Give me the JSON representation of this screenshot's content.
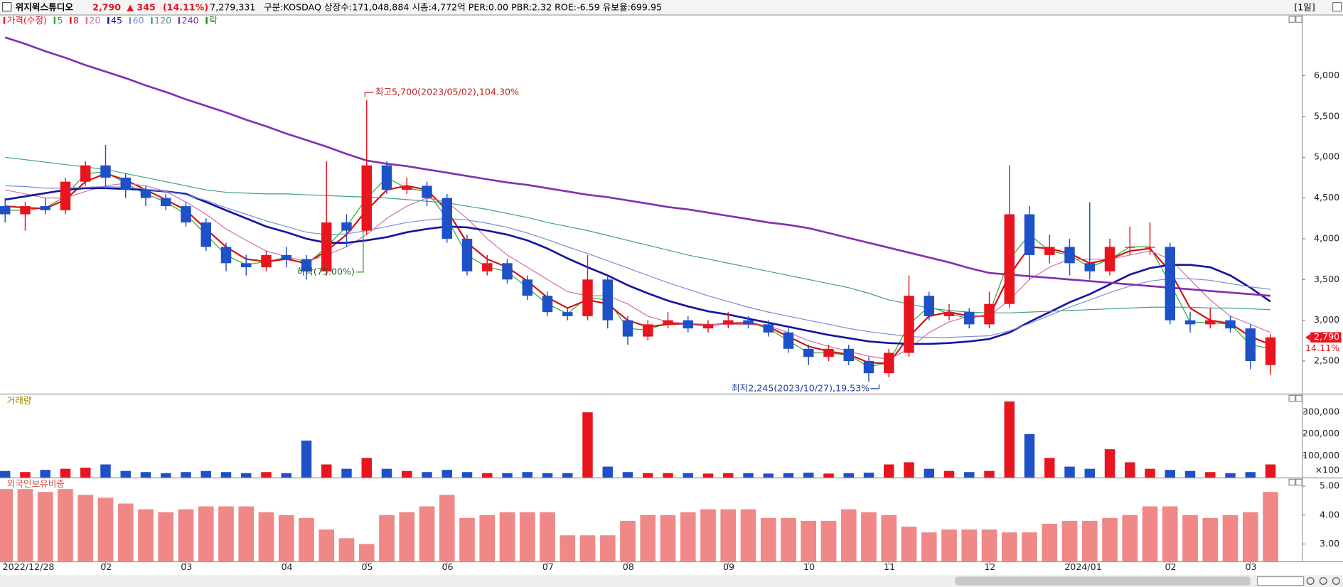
{
  "header": {
    "name": "위지윅스튜디오",
    "price": "2,790",
    "change": "▲ 345",
    "rate_text": "(14.11%)",
    "volume": "7,279,331",
    "info": "구분:KOSDAQ 상장수:171,048,884 시총:4,772억 PER:0.00 PBR:2.32 ROE:-6.59 유보율:699.95",
    "period": "[1일]",
    "axis_rate": "14.11%"
  },
  "chart_data": [
    {
      "type": "candlestick",
      "name": "가격(수정)",
      "legend_extra": "락",
      "up_color": "#e8141e",
      "down_color": "#1e50c8",
      "categories": [
        "2022/12/28",
        null,
        null,
        null,
        null,
        "02",
        null,
        null,
        null,
        "03",
        null,
        null,
        null,
        null,
        "04",
        null,
        null,
        null,
        "05",
        null,
        null,
        null,
        "06",
        null,
        null,
        null,
        null,
        "07",
        null,
        null,
        null,
        "08",
        null,
        null,
        null,
        null,
        "09",
        null,
        null,
        null,
        "10",
        null,
        null,
        null,
        "11",
        null,
        null,
        null,
        null,
        "12",
        null,
        null,
        null,
        "2024/01",
        null,
        null,
        null,
        null,
        "02",
        null,
        null,
        null,
        "03",
        null
      ],
      "open": [
        4400,
        4300,
        4400,
        4350,
        4700,
        4900,
        4750,
        4600,
        4500,
        4400,
        4200,
        3900,
        3700,
        3650,
        3800,
        3750,
        3600,
        4200,
        4100,
        4900,
        4600,
        4650,
        4500,
        4000,
        3600,
        3700,
        3500,
        3300,
        3100,
        3050,
        3500,
        3000,
        2800,
        2950,
        3000,
        2900,
        2950,
        3000,
        2950,
        2850,
        2650,
        2550,
        2650,
        2500,
        2350,
        2600,
        3300,
        3050,
        3100,
        2950,
        3200,
        4300,
        3800,
        3900,
        3700,
        3600,
        3900,
        3900,
        3900,
        3000,
        2950,
        3000,
        2900,
        2450
      ],
      "high": [
        4500,
        4450,
        4500,
        4750,
        4950,
        5150,
        4800,
        4650,
        4550,
        4450,
        4250,
        3950,
        3800,
        3850,
        3900,
        3800,
        4950,
        4300,
        5700,
        4950,
        4750,
        4700,
        4550,
        4050,
        3800,
        3750,
        3550,
        3350,
        3150,
        3800,
        3550,
        3050,
        3000,
        3100,
        3050,
        3000,
        3100,
        3050,
        3000,
        2900,
        2700,
        2700,
        2700,
        2550,
        2650,
        3550,
        3350,
        3200,
        3150,
        3350,
        4900,
        4400,
        4050,
        4000,
        4450,
        4000,
        4150,
        4200,
        3950,
        3100,
        3150,
        3050,
        2950,
        2830
      ],
      "low": [
        4200,
        4100,
        4300,
        4300,
        4650,
        4650,
        4500,
        4400,
        4350,
        4150,
        3850,
        3600,
        3550,
        3600,
        3650,
        3500,
        3550,
        3900,
        4050,
        4550,
        4550,
        4400,
        3950,
        3550,
        3550,
        3450,
        3250,
        3050,
        3000,
        3000,
        2900,
        2700,
        2750,
        2900,
        2850,
        2850,
        2900,
        2900,
        2800,
        2600,
        2450,
        2500,
        2450,
        2245,
        2300,
        2550,
        3000,
        3000,
        2900,
        2900,
        3150,
        3500,
        3700,
        3550,
        3500,
        3550,
        3800,
        3800,
        2950,
        2850,
        2900,
        2850,
        2400,
        2330
      ],
      "close": [
        4300,
        4400,
        4350,
        4700,
        4900,
        4750,
        4600,
        4500,
        4400,
        4200,
        3900,
        3700,
        3650,
        3800,
        3750,
        3600,
        4200,
        4100,
        4900,
        4600,
        4650,
        4500,
        4000,
        3600,
        3700,
        3500,
        3300,
        3100,
        3050,
        3500,
        3000,
        2800,
        2950,
        3000,
        2900,
        2950,
        3000,
        2950,
        2850,
        2650,
        2550,
        2650,
        2500,
        2350,
        2600,
        3300,
        3050,
        3100,
        2950,
        3200,
        4300,
        3800,
        3900,
        3700,
        3600,
        3900,
        3900,
        3900,
        3000,
        2950,
        3000,
        2900,
        2500,
        2790
      ],
      "series": [
        {
          "name": "5",
          "color": "#2ea82e",
          "values": [
            4350,
            4350,
            4380,
            4520,
            4800,
            4820,
            4680,
            4550,
            4450,
            4300,
            4050,
            3800,
            3680,
            3720,
            3770,
            3680,
            3900,
            4150,
            4500,
            4750,
            4620,
            4580,
            4250,
            3800,
            3650,
            3600,
            3400,
            3200,
            3080,
            3280,
            3250,
            2900,
            2880,
            2970,
            2950,
            2930,
            2970,
            2970,
            2900,
            2750,
            2600,
            2600,
            2570,
            2430,
            2480,
            2950,
            3170,
            3080,
            3020,
            3080,
            3750,
            4050,
            3850,
            3800,
            3650,
            3750,
            3900,
            3900,
            3450,
            2980,
            2970,
            2950,
            2700,
            2650
          ]
        },
        {
          "name": "8",
          "color": "#d41010",
          "values": [
            4400,
            4380,
            4370,
            4480,
            4700,
            4800,
            4720,
            4600,
            4480,
            4350,
            4120,
            3900,
            3750,
            3720,
            3750,
            3700,
            3850,
            4050,
            4350,
            4600,
            4650,
            4600,
            4350,
            3950,
            3750,
            3650,
            3480,
            3280,
            3150,
            3250,
            3200,
            3000,
            2920,
            2950,
            2960,
            2940,
            2960,
            2970,
            2920,
            2800,
            2680,
            2620,
            2580,
            2480,
            2470,
            2800,
            3050,
            3100,
            3050,
            3050,
            3550,
            3900,
            3880,
            3820,
            3700,
            3750,
            3850,
            3880,
            3600,
            3150,
            3000,
            2960,
            2800,
            2700
          ]
        },
        {
          "name": "20",
          "color": "#d070a8",
          "values": [
            4600,
            4550,
            4500,
            4500,
            4580,
            4650,
            4680,
            4650,
            4580,
            4450,
            4300,
            4120,
            3980,
            3850,
            3780,
            3720,
            3800,
            3900,
            4050,
            4250,
            4400,
            4500,
            4450,
            4250,
            4000,
            3800,
            3650,
            3500,
            3350,
            3300,
            3300,
            3200,
            3050,
            2980,
            2960,
            2950,
            2950,
            2950,
            2930,
            2850,
            2750,
            2680,
            2620,
            2560,
            2520,
            2650,
            2850,
            2980,
            3050,
            3050,
            3250,
            3500,
            3650,
            3750,
            3750,
            3750,
            3800,
            3850,
            3750,
            3500,
            3250,
            3050,
            2950,
            2850
          ]
        },
        {
          "name": "45",
          "color": "#1414a0",
          "values": [
            4480,
            4520,
            4560,
            4600,
            4620,
            4620,
            4610,
            4600,
            4580,
            4550,
            4450,
            4350,
            4250,
            4150,
            4080,
            4000,
            3950,
            3950,
            3980,
            4020,
            4080,
            4120,
            4150,
            4140,
            4100,
            4050,
            3980,
            3880,
            3760,
            3650,
            3550,
            3430,
            3330,
            3240,
            3170,
            3110,
            3070,
            3020,
            2970,
            2920,
            2870,
            2820,
            2780,
            2740,
            2720,
            2710,
            2710,
            2720,
            2740,
            2770,
            2850,
            2980,
            3100,
            3220,
            3320,
            3440,
            3560,
            3640,
            3680,
            3680,
            3650,
            3550,
            3400,
            3230
          ]
        },
        {
          "name": "60",
          "color": "#7890d0",
          "values": [
            4650,
            4640,
            4620,
            4620,
            4630,
            4640,
            4630,
            4610,
            4580,
            4540,
            4470,
            4380,
            4300,
            4220,
            4150,
            4080,
            4050,
            4060,
            4100,
            4150,
            4200,
            4230,
            4250,
            4230,
            4190,
            4140,
            4070,
            3990,
            3900,
            3820,
            3730,
            3640,
            3550,
            3460,
            3380,
            3300,
            3230,
            3160,
            3100,
            3050,
            3000,
            2950,
            2900,
            2860,
            2830,
            2800,
            2790,
            2790,
            2800,
            2810,
            2870,
            2960,
            3060,
            3160,
            3250,
            3340,
            3420,
            3480,
            3510,
            3510,
            3490,
            3450,
            3410,
            3380
          ]
        },
        {
          "name": "120",
          "color": "#40a080",
          "values": [
            5000,
            4970,
            4940,
            4910,
            4880,
            4850,
            4800,
            4750,
            4700,
            4650,
            4600,
            4570,
            4560,
            4550,
            4550,
            4540,
            4530,
            4520,
            4510,
            4500,
            4480,
            4460,
            4440,
            4400,
            4360,
            4310,
            4260,
            4200,
            4150,
            4100,
            4040,
            3980,
            3920,
            3860,
            3800,
            3750,
            3700,
            3650,
            3600,
            3550,
            3500,
            3450,
            3400,
            3330,
            3250,
            3200,
            3150,
            3120,
            3100,
            3090,
            3090,
            3100,
            3110,
            3120,
            3130,
            3140,
            3150,
            3160,
            3160,
            3160,
            3150,
            3150,
            3140,
            3130
          ]
        },
        {
          "name": "240",
          "color": "#8030b0",
          "values": [
            6470,
            6390,
            6300,
            6220,
            6130,
            6050,
            5970,
            5880,
            5800,
            5710,
            5630,
            5550,
            5460,
            5380,
            5290,
            5210,
            5130,
            5040,
            4960,
            4920,
            4890,
            4850,
            4810,
            4770,
            4730,
            4690,
            4660,
            4620,
            4580,
            4540,
            4510,
            4470,
            4430,
            4390,
            4360,
            4320,
            4280,
            4240,
            4200,
            4170,
            4130,
            4070,
            4010,
            3950,
            3890,
            3830,
            3770,
            3710,
            3640,
            3580,
            3560,
            3540,
            3520,
            3500,
            3480,
            3460,
            3440,
            3420,
            3400,
            3380,
            3360,
            3340,
            3320,
            3300
          ]
        }
      ],
      "annotations": [
        "최고5,700(2023/05/02),104.30%",
        "최저2,245(2023/10/27),19.53%",
        "하락(75.00%)"
      ],
      "ylim": [
        2100,
        6740
      ],
      "yticks": [
        {
          "value": 2500,
          "label": "2,500"
        },
        {
          "value": 3000,
          "label": "3,000"
        },
        {
          "value": 3500,
          "label": "3,500"
        },
        {
          "value": 4000,
          "label": "4,000"
        },
        {
          "value": 4500,
          "label": "4,500"
        },
        {
          "value": 5000,
          "label": "5,000"
        },
        {
          "value": 5500,
          "label": "5,500"
        },
        {
          "value": 6000,
          "label": "6,000"
        }
      ]
    },
    {
      "type": "bar",
      "title": "거래량",
      "unit_label": "×100",
      "values": [
        30000,
        25000,
        35000,
        40000,
        45000,
        60000,
        30000,
        25000,
        20000,
        25000,
        30000,
        25000,
        20000,
        25000,
        20000,
        170000,
        60000,
        40000,
        90000,
        40000,
        30000,
        25000,
        35000,
        25000,
        20000,
        20000,
        25000,
        20000,
        20000,
        300000,
        50000,
        25000,
        20000,
        20000,
        20000,
        18000,
        20000,
        20000,
        18000,
        20000,
        22000,
        18000,
        20000,
        22000,
        60000,
        70000,
        40000,
        30000,
        25000,
        30000,
        350000,
        200000,
        90000,
        50000,
        40000,
        130000,
        70000,
        40000,
        35000,
        30000,
        25000,
        20000,
        25000,
        60000
      ],
      "ylim": [
        0,
        386000
      ],
      "yticks": [
        {
          "value": 100000,
          "label": "100,000"
        },
        {
          "value": 200000,
          "label": "200,000"
        },
        {
          "value": 300000,
          "label": "300,000"
        }
      ]
    },
    {
      "type": "bar",
      "title": "외국인보유비중",
      "color": "#f08888",
      "values": [
        4.9,
        4.9,
        4.8,
        4.9,
        4.7,
        4.6,
        4.4,
        4.2,
        4.1,
        4.2,
        4.3,
        4.3,
        4.3,
        4.1,
        4.0,
        3.9,
        3.5,
        3.2,
        3.0,
        4.0,
        4.1,
        4.3,
        4.7,
        3.9,
        4.0,
        4.1,
        4.1,
        4.1,
        3.3,
        3.3,
        3.3,
        3.8,
        4.0,
        4.0,
        4.1,
        4.2,
        4.2,
        4.2,
        3.9,
        3.9,
        3.8,
        3.8,
        4.2,
        4.1,
        4.0,
        3.6,
        3.4,
        3.5,
        3.5,
        3.5,
        3.4,
        3.4,
        3.7,
        3.8,
        3.8,
        3.9,
        4.0,
        4.3,
        4.3,
        4.0,
        3.9,
        4.0,
        4.1,
        4.8
      ],
      "ylim": [
        2.4,
        5.3
      ],
      "yticks": [
        {
          "value": 3,
          "label": "3.00"
        },
        {
          "value": 4,
          "label": "4.00"
        },
        {
          "value": 5,
          "label": "5.00"
        }
      ]
    }
  ]
}
